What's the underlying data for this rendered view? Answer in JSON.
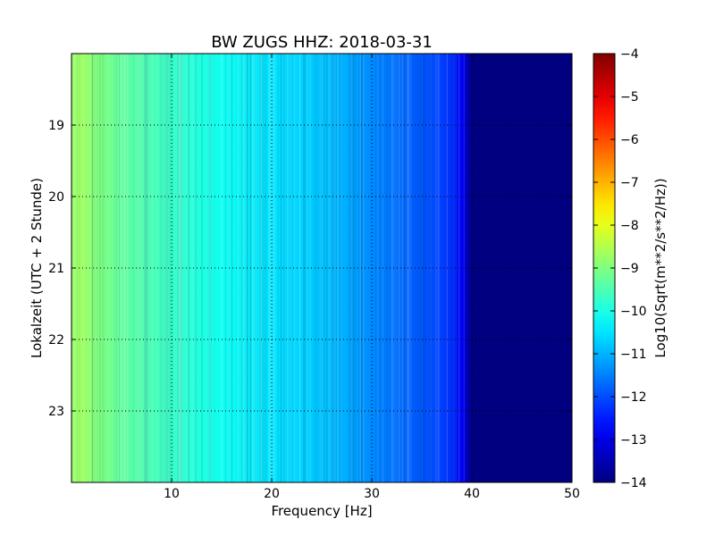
{
  "chart_data": {
    "type": "heatmap",
    "title": "BW ZUGS HHZ: 2018-03-31",
    "xlabel": "Frequency [Hz]",
    "ylabel": "Lokalzeit (UTC + 2 Stunde)",
    "xlim": [
      0,
      50
    ],
    "ylim": [
      24,
      18
    ],
    "x_ticks": [
      10,
      20,
      30,
      40,
      50
    ],
    "y_ticks": [
      19,
      20,
      21,
      22,
      23
    ],
    "grid": true,
    "colormap": "jet",
    "colorbar": {
      "label": "Log10(Sqrt(m**2/s**2/Hz))",
      "range": [
        -14,
        -4
      ],
      "ticks": [
        -4,
        -5,
        -6,
        -7,
        -8,
        -9,
        -10,
        -11,
        -12,
        -13,
        -14
      ]
    },
    "frequency_hz": [
      0,
      1,
      2,
      5,
      10,
      15,
      20,
      25,
      28,
      30,
      33,
      36,
      38,
      39,
      40,
      45,
      50
    ],
    "log10_psd": [
      -8.8,
      -8.7,
      -8.9,
      -9.3,
      -9.7,
      -10.1,
      -10.5,
      -10.8,
      -11.1,
      -11.4,
      -11.7,
      -12.0,
      -12.3,
      -12.8,
      -14.0,
      -14.0,
      -14.0
    ]
  }
}
